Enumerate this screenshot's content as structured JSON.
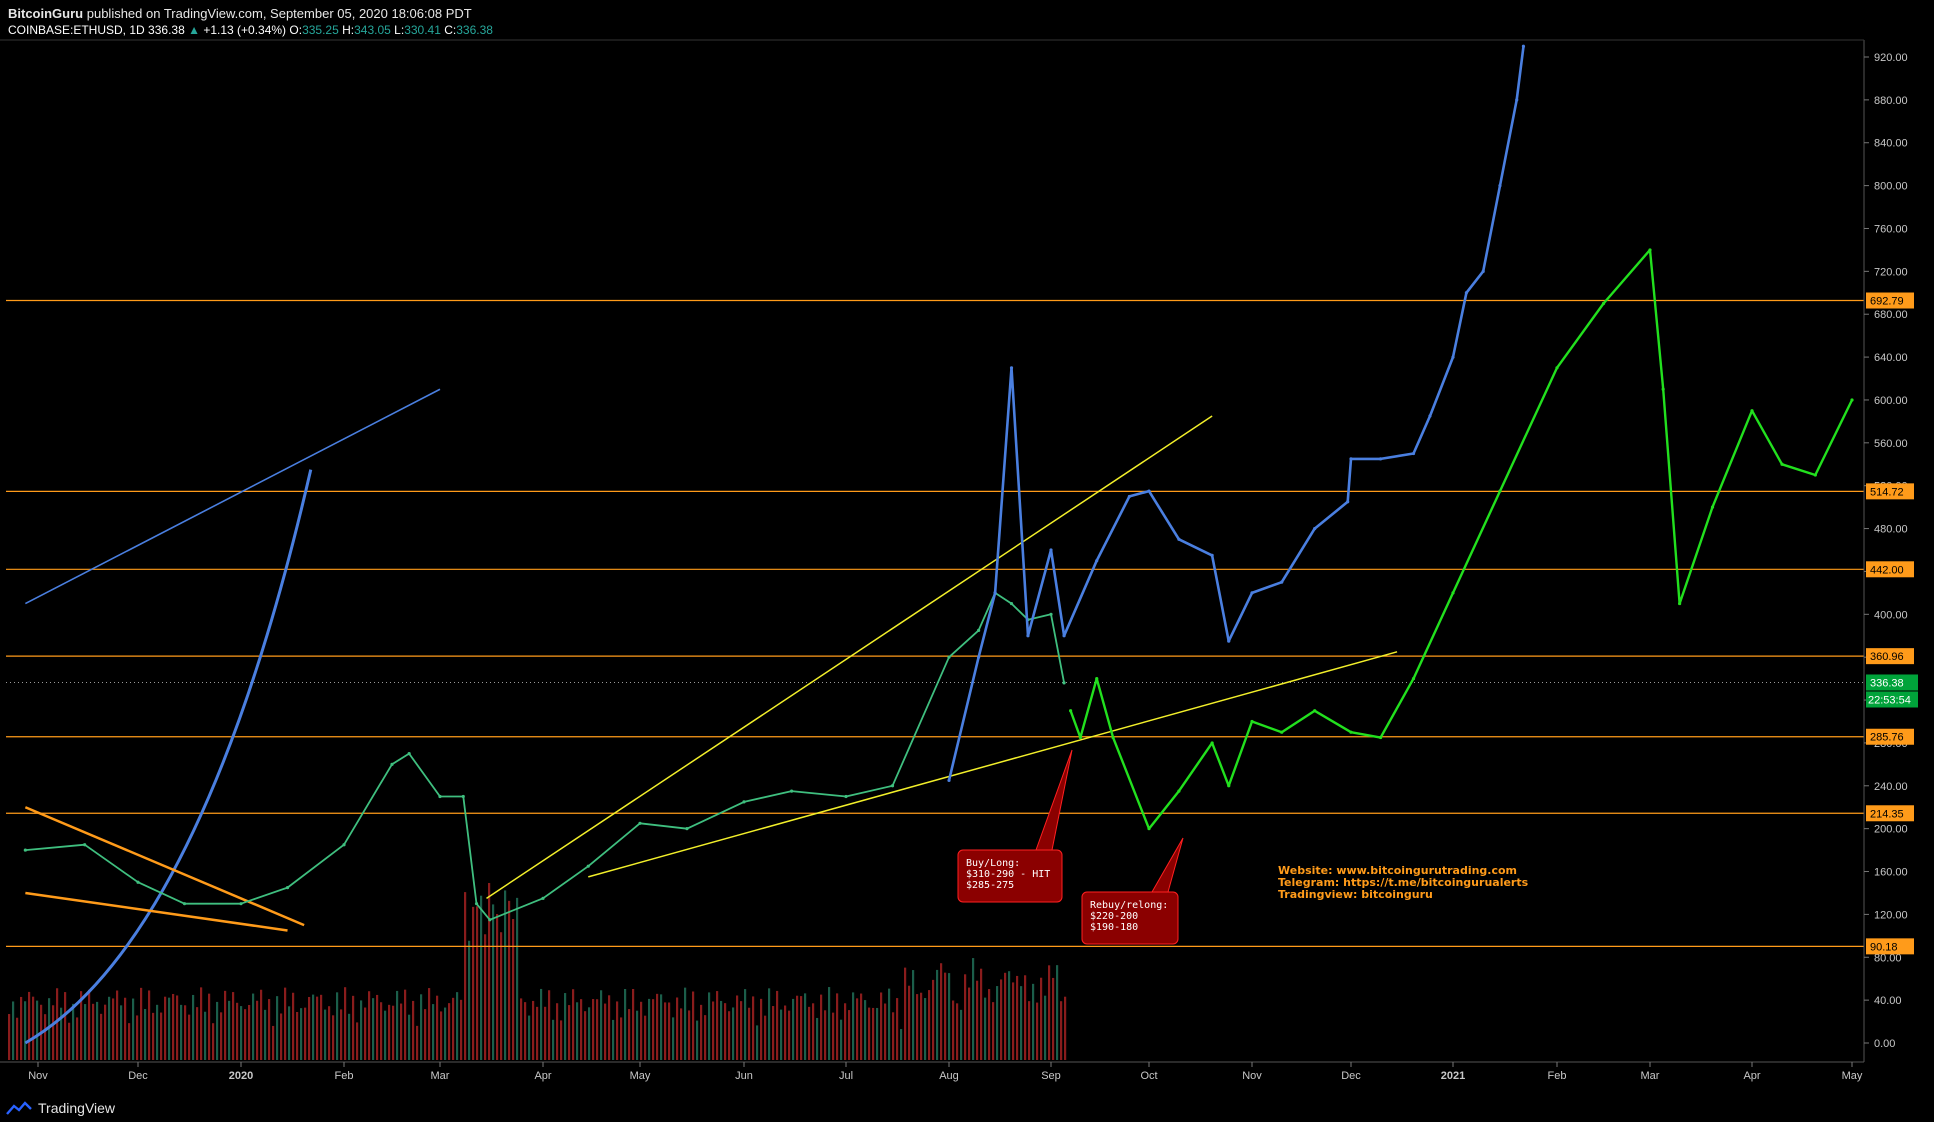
{
  "header": {
    "author": "BitcoinGuru",
    "published": "published on TradingView.com, September 05, 2020 18:06:08 PDT",
    "symbol": "COINBASE:ETHUSD, 1D",
    "last": "336.38",
    "change_arrow": "▲",
    "change": "+1.13 (+0.34%)",
    "o_label": "O:",
    "o": "335.25",
    "h_label": "H:",
    "h": "343.05",
    "l_label": "L:",
    "l": "330.41",
    "c_label": "C:",
    "c": "336.38"
  },
  "footer": {
    "brand": "TradingView",
    "icon": "tradingview-logo-icon"
  },
  "colors": {
    "background": "#000000",
    "level_line": "#ff9b1a",
    "price_projection": "#4a7fe0",
    "forecast": "#22e01e",
    "trendline_yellow": "#f2ef2a",
    "wedge_orange": "#ff9b1a",
    "volume_bar": "#8a1c1c",
    "callout_fill": "#8b0000",
    "current_price_badge": "#00a33a"
  },
  "chart_data": {
    "type": "line",
    "title": "",
    "xlabel": "",
    "ylabel": "",
    "x_ticks": [
      "Nov",
      "Dec",
      "2020",
      "Feb",
      "Mar",
      "Apr",
      "May",
      "Jun",
      "Jul",
      "Aug",
      "Sep",
      "Oct",
      "Nov",
      "Dec",
      "2021",
      "Feb",
      "Mar",
      "Apr",
      "May"
    ],
    "y_ticks": [
      0,
      40,
      80,
      120,
      160,
      200,
      240,
      280,
      320,
      360,
      400,
      440,
      480,
      520,
      560,
      600,
      640,
      680,
      720,
      760,
      800,
      840,
      880,
      920
    ],
    "y_tick_labels": [
      "0.00",
      "40.00",
      "80.00",
      "120.00",
      "160.00",
      "200.00",
      "240.00",
      "280.00",
      "320.00",
      "360.00",
      "400.00",
      "440.00",
      "480.00",
      "520.00",
      "560.00",
      "600.00",
      "640.00",
      "680.00",
      "720.00",
      "760.00",
      "800.00",
      "840.00",
      "880.00",
      "920.00"
    ],
    "ylim": [
      -10,
      930
    ],
    "grid": false,
    "horizontal_levels": [
      {
        "value": 692.79,
        "label": "692.79"
      },
      {
        "value": 514.72,
        "label": "514.72"
      },
      {
        "value": 442.0,
        "label": "442.00"
      },
      {
        "value": 360.96,
        "label": "360.96"
      },
      {
        "value": 285.76,
        "label": "285.76"
      },
      {
        "value": 214.35,
        "label": "214.35"
      },
      {
        "value": 90.18,
        "label": "90.18"
      }
    ],
    "current_price": {
      "value": 336.38,
      "label": "336.38",
      "countdown": "22:53:54"
    },
    "series": [
      {
        "kind": "price_history",
        "x": [
          "Oct 28",
          "Nov 15",
          "Dec 1",
          "Dec 15",
          "Jan 1",
          "Jan 15",
          "Feb 1",
          "Feb 15",
          "Feb 20",
          "Mar 1",
          "Mar 8",
          "Mar 12",
          "Mar 16",
          "Apr 1",
          "Apr 15",
          "May 1",
          "May 15",
          "Jun 1",
          "Jun 15",
          "Jul 1",
          "Jul 15",
          "Aug 1",
          "Aug 10",
          "Aug 15",
          "Aug 20",
          "Aug 25",
          "Sep 1",
          "Sep 5"
        ],
        "values": [
          180,
          185,
          150,
          130,
          130,
          145,
          185,
          260,
          270,
          230,
          230,
          130,
          115,
          135,
          165,
          205,
          200,
          225,
          235,
          230,
          240,
          360,
          385,
          420,
          410,
          395,
          400,
          336
        ]
      },
      {
        "kind": "price_projection",
        "x": [
          "Aug 1",
          "Aug 10",
          "Aug 15",
          "Aug 20",
          "Aug 25",
          "Sep 1",
          "Sep 5",
          "Sep 15",
          "Sep 25",
          "Oct 1",
          "Oct 10",
          "Oct 20",
          "Oct 25",
          "Nov 1",
          "Nov 10",
          "Nov 20",
          "Nov 30",
          "Dec 1",
          "Dec 10",
          "Dec 20",
          "Dec 25",
          "Jan 1",
          "Jan 5",
          "Jan 10",
          "Jan 15",
          "Jan 20",
          "Jan 22"
        ],
        "values": [
          245,
          360,
          420,
          630,
          380,
          460,
          380,
          450,
          510,
          515,
          470,
          455,
          375,
          420,
          430,
          480,
          505,
          545,
          545,
          550,
          585,
          640,
          700,
          720,
          800,
          880,
          930
        ]
      },
      {
        "kind": "forecast",
        "x": [
          "Sep 7",
          "Sep 10",
          "Sep 15",
          "Sep 20",
          "Oct 1",
          "Oct 10",
          "Oct 20",
          "Oct 25",
          "Nov 1",
          "Nov 10",
          "Nov 20",
          "Dec 1",
          "Dec 10",
          "Dec 20",
          "Jan 1",
          "Jan 15",
          "Feb 1",
          "Feb 15",
          "Mar 1",
          "Mar 5",
          "Mar 10",
          "Mar 20",
          "Apr 1",
          "Apr 10",
          "Apr 20",
          "May 1"
        ],
        "values": [
          310,
          285,
          340,
          285,
          200,
          235,
          280,
          240,
          300,
          290,
          310,
          290,
          285,
          340,
          420,
          515,
          630,
          690,
          740,
          610,
          410,
          500,
          590,
          540,
          530,
          600
        ]
      }
    ],
    "trendlines": [
      {
        "kind": "log_support",
        "from": {
          "x": "Oct 28",
          "y": 0
        },
        "to": {
          "x": "Jan 22",
          "y": 535
        }
      },
      {
        "kind": "upper_channel",
        "from": {
          "x": "Oct 28",
          "y": 410
        },
        "to": {
          "x": "Mar 1",
          "y": 610
        }
      },
      {
        "kind": "yellow_upper",
        "from": {
          "x": "Mar 15",
          "y": 135
        },
        "to": {
          "x": "Oct 20",
          "y": 585
        }
      },
      {
        "kind": "yellow_lower",
        "from": {
          "x": "Apr 15",
          "y": 155
        },
        "to": {
          "x": "Dec 15",
          "y": 365
        }
      },
      {
        "kind": "wedge_top",
        "from": {
          "x": "Oct 28",
          "y": 220
        },
        "to": {
          "x": "Jan 20",
          "y": 110
        }
      },
      {
        "kind": "wedge_bottom",
        "from": {
          "x": "Oct 28",
          "y": 140
        },
        "to": {
          "x": "Jan 15",
          "y": 105
        }
      }
    ],
    "callouts": [
      {
        "lines": [
          "Buy/Long:",
          "$310-290 - HIT",
          "$285-275"
        ]
      },
      {
        "lines": [
          "Rebuy/relong:",
          "$220-200",
          "$190-180"
        ]
      }
    ],
    "annotations": [
      "Website: www.bitcoingurutrading.com",
      "Telegram: https://t.me/bitcoingurualerts",
      "Tradingview: bitcoinguru"
    ]
  }
}
